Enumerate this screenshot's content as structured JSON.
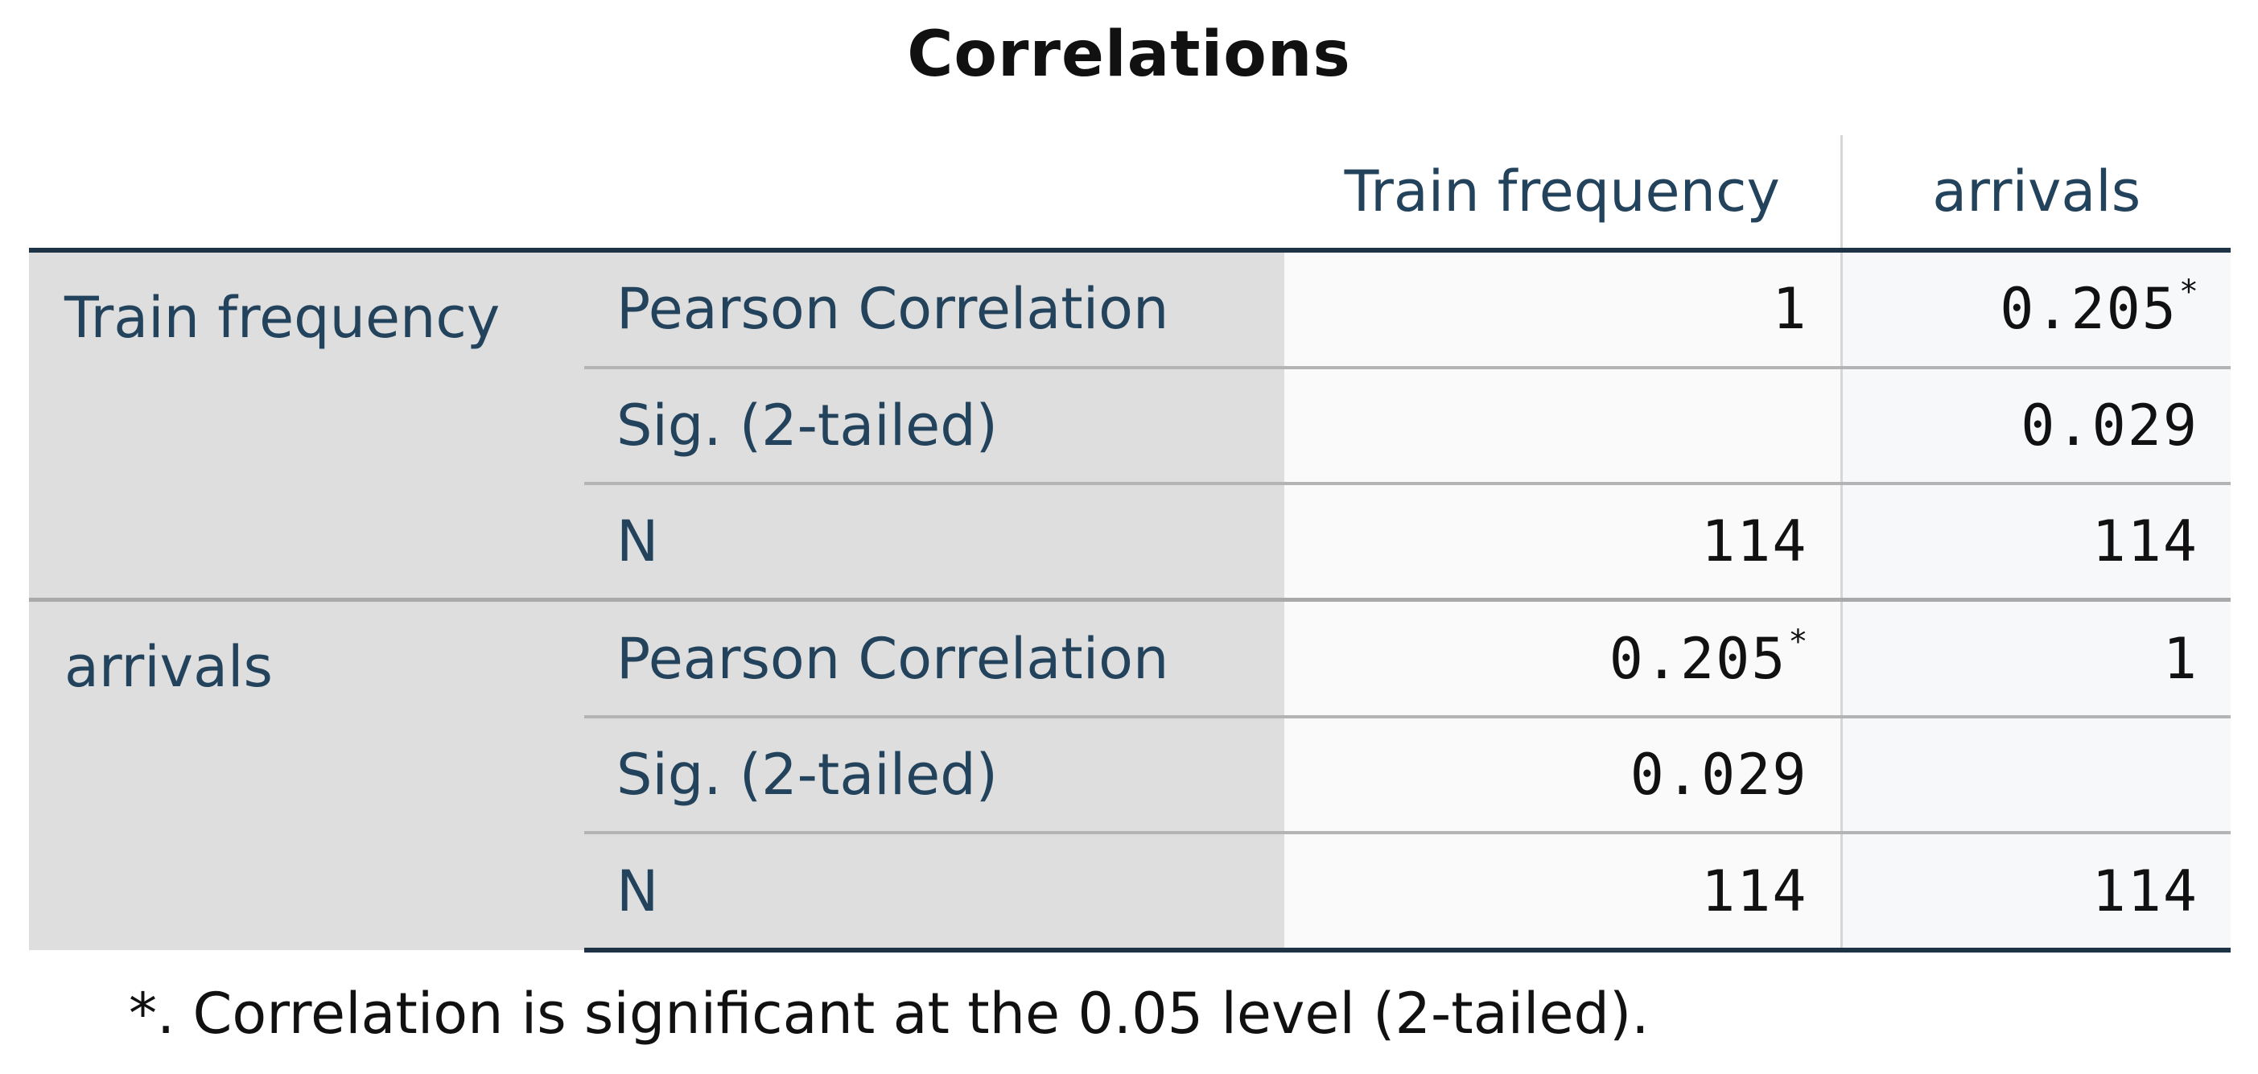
{
  "title": "Correlations",
  "columns": [
    "Train frequency",
    "arrivals"
  ],
  "groups": [
    {
      "label": "Train frequency",
      "rows": [
        {
          "stat": "Pearson Correlation",
          "c1": "1",
          "c1_mark": "",
          "c2": "0.205",
          "c2_mark": "*"
        },
        {
          "stat": "Sig. (2-tailed)",
          "c1": "",
          "c1_mark": "",
          "c2": "0.029",
          "c2_mark": ""
        },
        {
          "stat": "N",
          "c1": "114",
          "c1_mark": "",
          "c2": "114",
          "c2_mark": ""
        }
      ]
    },
    {
      "label": "arrivals",
      "rows": [
        {
          "stat": "Pearson Correlation",
          "c1": "0.205",
          "c1_mark": "*",
          "c2": "1",
          "c2_mark": ""
        },
        {
          "stat": "Sig. (2-tailed)",
          "c1": "0.029",
          "c1_mark": "",
          "c2": "",
          "c2_mark": ""
        },
        {
          "stat": "N",
          "c1": "114",
          "c1_mark": "",
          "c2": "114",
          "c2_mark": ""
        }
      ]
    }
  ],
  "footnote": "*. Correlation is significant at the 0.05 level (2-tailed).",
  "colors": {
    "header_text": "#23435c",
    "label_background": "#dedede",
    "border_dark": "#1f3347"
  }
}
